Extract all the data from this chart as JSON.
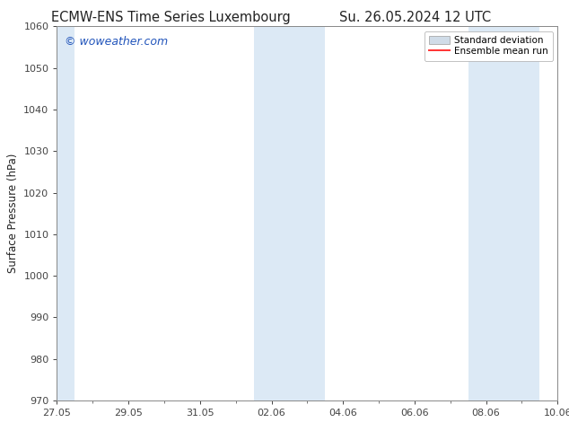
{
  "title_left": "ECMW-ENS Time Series Luxembourg",
  "title_right": "Su. 26.05.2024 12 UTC",
  "ylabel": "Surface Pressure (hPa)",
  "ylim": [
    970,
    1060
  ],
  "yticks": [
    970,
    980,
    990,
    1000,
    1010,
    1020,
    1030,
    1040,
    1050,
    1060
  ],
  "x_min": 0,
  "x_max": 14,
  "xtick_positions": [
    0,
    2,
    4,
    6,
    8,
    10,
    12,
    14
  ],
  "xtick_labels": [
    "27.05",
    "29.05",
    "31.05",
    "02.06",
    "04.06",
    "06.06",
    "08.06",
    "10.06"
  ],
  "shaded_bands": [
    {
      "x_start": -0.1,
      "x_end": 0.5,
      "color": "#dce9f5"
    },
    {
      "x_start": 5.5,
      "x_end": 7.5,
      "color": "#dce9f5"
    },
    {
      "x_start": 11.5,
      "x_end": 13.5,
      "color": "#dce9f5"
    }
  ],
  "watermark": "© woweather.com",
  "watermark_color": "#2255bb",
  "legend_label_std": "Standard deviation",
  "legend_label_ens": "Ensemble mean run",
  "legend_patch_color": "#d0dce8",
  "legend_patch_edge": "#aaaaaa",
  "legend_line_color": "#ff3333",
  "background_color": "#ffffff",
  "plot_bg_color": "#ffffff",
  "spine_color": "#888888",
  "tick_color": "#444444",
  "font_color": "#222222",
  "title_fontsize": 10.5,
  "tick_fontsize": 8,
  "ylabel_fontsize": 8.5,
  "watermark_fontsize": 9,
  "legend_fontsize": 7.5
}
